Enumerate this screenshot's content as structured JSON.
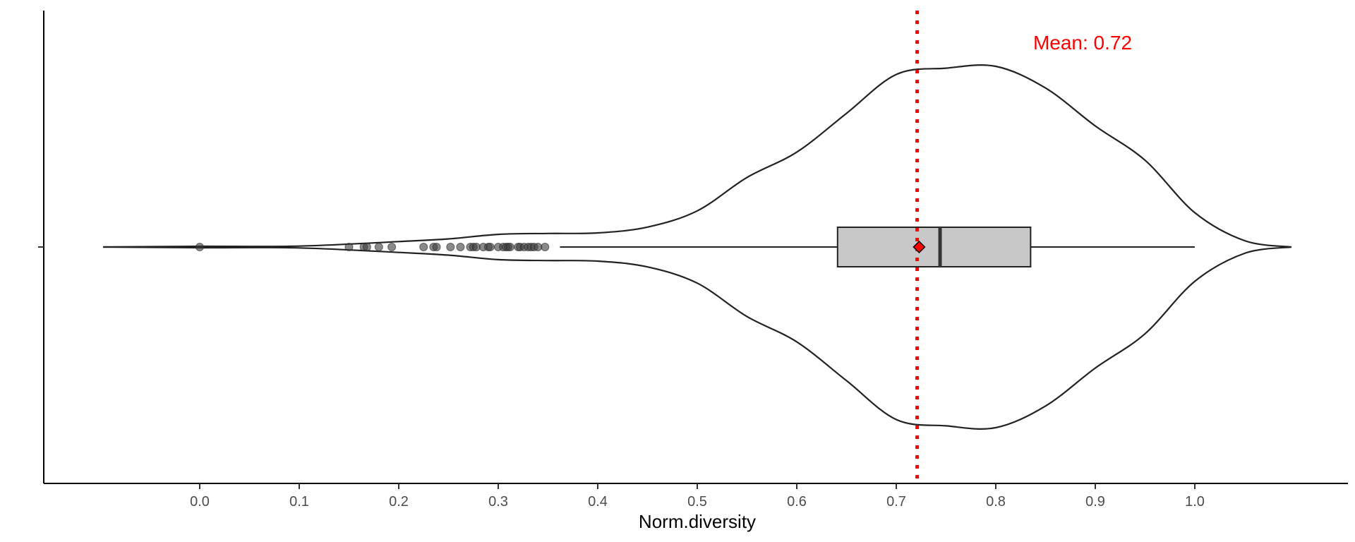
{
  "chart_data": {
    "type": "violin",
    "xlabel": "Norm.diversity",
    "ylabel": "",
    "xlim": [
      -0.157,
      1.152
    ],
    "x_ticks": [
      0.0,
      0.1,
      0.2,
      0.3,
      0.4,
      0.5,
      0.6,
      0.7,
      0.8,
      0.9,
      1.0
    ],
    "x_tick_labels": [
      "0.0",
      "0.1",
      "0.2",
      "0.3",
      "0.4",
      "0.5",
      "0.6",
      "0.7",
      "0.8",
      "0.9",
      "1.0"
    ],
    "grid": false,
    "legend": "none",
    "violin": {
      "range": [
        -0.097,
        1.097
      ],
      "density_profile": [
        {
          "x": -0.097,
          "d": 0.0
        },
        {
          "x": 0.0,
          "d": 0.004
        },
        {
          "x": 0.1,
          "d": 0.005
        },
        {
          "x": 0.2,
          "d": 0.03
        },
        {
          "x": 0.25,
          "d": 0.045
        },
        {
          "x": 0.3,
          "d": 0.07
        },
        {
          "x": 0.35,
          "d": 0.075
        },
        {
          "x": 0.4,
          "d": 0.078
        },
        {
          "x": 0.45,
          "d": 0.11
        },
        {
          "x": 0.5,
          "d": 0.2
        },
        {
          "x": 0.55,
          "d": 0.385
        },
        {
          "x": 0.6,
          "d": 0.525
        },
        {
          "x": 0.65,
          "d": 0.74
        },
        {
          "x": 0.7,
          "d": 0.955
        },
        {
          "x": 0.75,
          "d": 0.99
        },
        {
          "x": 0.8,
          "d": 1.0
        },
        {
          "x": 0.85,
          "d": 0.88
        },
        {
          "x": 0.9,
          "d": 0.67
        },
        {
          "x": 0.95,
          "d": 0.48
        },
        {
          "x": 1.0,
          "d": 0.19
        },
        {
          "x": 1.05,
          "d": 0.035
        },
        {
          "x": 1.097,
          "d": 0.0
        }
      ]
    },
    "box": {
      "whisker_low": 0.362,
      "q1": 0.641,
      "median": 0.744,
      "q3": 0.835,
      "whisker_high": 1.0,
      "fill": "#c8c8c8"
    },
    "outliers": [
      0.0,
      0.15,
      0.165,
      0.168,
      0.18,
      0.193,
      0.225,
      0.235,
      0.238,
      0.252,
      0.262,
      0.272,
      0.275,
      0.278,
      0.285,
      0.29,
      0.292,
      0.3,
      0.305,
      0.308,
      0.31,
      0.312,
      0.32,
      0.322,
      0.326,
      0.33,
      0.333,
      0.336,
      0.34,
      0.347
    ],
    "mean": 0.721,
    "mean_marker_value": 0.723,
    "mean_label": "Mean: 0.72",
    "mean_color": "#ff0000",
    "line_color": "#222222"
  }
}
